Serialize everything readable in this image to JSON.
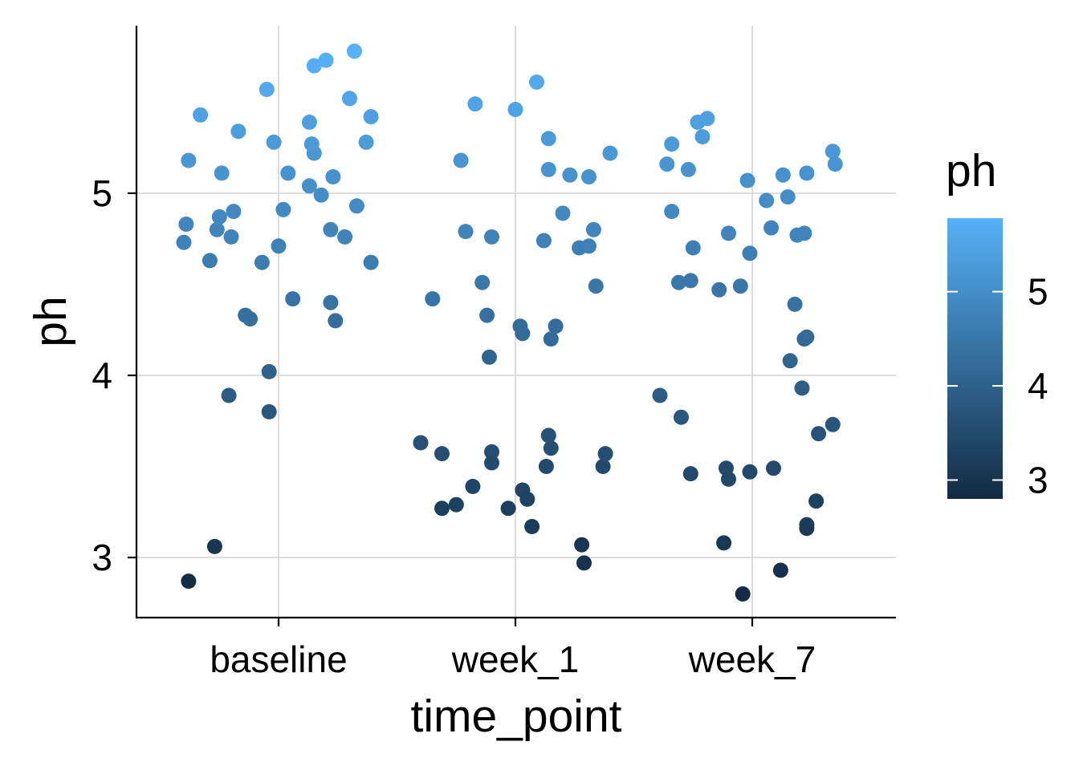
{
  "chart_data": {
    "type": "scatter",
    "title": "",
    "xlabel": "time_point",
    "ylabel": "ph",
    "categories": [
      "baseline",
      "week_1",
      "week_7"
    ],
    "ylim": [
      2.67,
      5.92
    ],
    "yticks": [
      3,
      4,
      5
    ],
    "grid": true,
    "jitter": true,
    "color_scale": {
      "variable": "ph",
      "low_color": "#132B43",
      "high_color": "#56B1F7",
      "range": [
        2.8,
        5.78
      ],
      "ticks": [
        3,
        4,
        5
      ]
    },
    "legend": {
      "title": "ph",
      "position": "right"
    },
    "points": [
      {
        "x": "baseline",
        "offset": -0.38,
        "y": 2.87
      },
      {
        "x": "baseline",
        "offset": -0.27,
        "y": 3.06
      },
      {
        "x": "baseline",
        "offset": -0.21,
        "y": 3.89
      },
      {
        "x": "baseline",
        "offset": -0.04,
        "y": 3.8
      },
      {
        "x": "baseline",
        "offset": -0.04,
        "y": 4.02
      },
      {
        "x": "baseline",
        "offset": -0.14,
        "y": 4.33
      },
      {
        "x": "baseline",
        "offset": -0.12,
        "y": 4.31
      },
      {
        "x": "baseline",
        "offset": 0.06,
        "y": 4.42
      },
      {
        "x": "baseline",
        "offset": 0.22,
        "y": 4.4
      },
      {
        "x": "baseline",
        "offset": 0.24,
        "y": 4.3
      },
      {
        "x": "baseline",
        "offset": -0.4,
        "y": 4.73
      },
      {
        "x": "baseline",
        "offset": -0.39,
        "y": 4.83
      },
      {
        "x": "baseline",
        "offset": -0.29,
        "y": 4.63
      },
      {
        "x": "baseline",
        "offset": -0.26,
        "y": 4.8
      },
      {
        "x": "baseline",
        "offset": -0.25,
        "y": 4.87
      },
      {
        "x": "baseline",
        "offset": -0.2,
        "y": 4.76
      },
      {
        "x": "baseline",
        "offset": -0.19,
        "y": 4.9
      },
      {
        "x": "baseline",
        "offset": -0.07,
        "y": 4.62
      },
      {
        "x": "baseline",
        "offset": 0.0,
        "y": 4.71
      },
      {
        "x": "baseline",
        "offset": 0.02,
        "y": 4.91
      },
      {
        "x": "baseline",
        "offset": 0.22,
        "y": 4.8
      },
      {
        "x": "baseline",
        "offset": 0.28,
        "y": 4.76
      },
      {
        "x": "baseline",
        "offset": 0.33,
        "y": 4.93
      },
      {
        "x": "baseline",
        "offset": 0.39,
        "y": 4.62
      },
      {
        "x": "baseline",
        "offset": 0.18,
        "y": 4.99
      },
      {
        "x": "baseline",
        "offset": 0.13,
        "y": 5.04
      },
      {
        "x": "baseline",
        "offset": 0.23,
        "y": 5.09
      },
      {
        "x": "baseline",
        "offset": 0.04,
        "y": 5.11
      },
      {
        "x": "baseline",
        "offset": -0.24,
        "y": 5.11
      },
      {
        "x": "baseline",
        "offset": -0.38,
        "y": 5.18
      },
      {
        "x": "baseline",
        "offset": 0.15,
        "y": 5.22
      },
      {
        "x": "baseline",
        "offset": 0.14,
        "y": 5.27
      },
      {
        "x": "baseline",
        "offset": -0.02,
        "y": 5.28
      },
      {
        "x": "baseline",
        "offset": 0.37,
        "y": 5.28
      },
      {
        "x": "baseline",
        "offset": -0.17,
        "y": 5.34
      },
      {
        "x": "baseline",
        "offset": 0.13,
        "y": 5.39
      },
      {
        "x": "baseline",
        "offset": -0.33,
        "y": 5.43
      },
      {
        "x": "baseline",
        "offset": 0.39,
        "y": 5.42
      },
      {
        "x": "baseline",
        "offset": 0.3,
        "y": 5.52
      },
      {
        "x": "baseline",
        "offset": -0.05,
        "y": 5.57
      },
      {
        "x": "baseline",
        "offset": 0.15,
        "y": 5.7
      },
      {
        "x": "baseline",
        "offset": 0.2,
        "y": 5.73
      },
      {
        "x": "baseline",
        "offset": 0.32,
        "y": 5.78
      },
      {
        "x": "week_1",
        "offset": -0.4,
        "y": 3.63
      },
      {
        "x": "week_1",
        "offset": -0.31,
        "y": 3.57
      },
      {
        "x": "week_1",
        "offset": -0.1,
        "y": 3.58
      },
      {
        "x": "week_1",
        "offset": -0.1,
        "y": 3.52
      },
      {
        "x": "week_1",
        "offset": -0.18,
        "y": 3.39
      },
      {
        "x": "week_1",
        "offset": -0.25,
        "y": 3.29
      },
      {
        "x": "week_1",
        "offset": -0.31,
        "y": 3.27
      },
      {
        "x": "week_1",
        "offset": -0.03,
        "y": 3.27
      },
      {
        "x": "week_1",
        "offset": 0.03,
        "y": 3.37
      },
      {
        "x": "week_1",
        "offset": 0.05,
        "y": 3.32
      },
      {
        "x": "week_1",
        "offset": 0.07,
        "y": 3.17
      },
      {
        "x": "week_1",
        "offset": 0.13,
        "y": 3.5
      },
      {
        "x": "week_1",
        "offset": 0.15,
        "y": 3.6
      },
      {
        "x": "week_1",
        "offset": 0.14,
        "y": 3.67
      },
      {
        "x": "week_1",
        "offset": 0.28,
        "y": 3.07
      },
      {
        "x": "week_1",
        "offset": 0.29,
        "y": 2.97
      },
      {
        "x": "week_1",
        "offset": 0.37,
        "y": 3.5
      },
      {
        "x": "week_1",
        "offset": 0.38,
        "y": 3.57
      },
      {
        "x": "week_1",
        "offset": -0.35,
        "y": 4.42
      },
      {
        "x": "week_1",
        "offset": -0.12,
        "y": 4.33
      },
      {
        "x": "week_1",
        "offset": -0.11,
        "y": 4.1
      },
      {
        "x": "week_1",
        "offset": 0.02,
        "y": 4.27
      },
      {
        "x": "week_1",
        "offset": 0.03,
        "y": 4.23
      },
      {
        "x": "week_1",
        "offset": 0.15,
        "y": 4.2
      },
      {
        "x": "week_1",
        "offset": 0.17,
        "y": 4.27
      },
      {
        "x": "week_1",
        "offset": -0.14,
        "y": 4.51
      },
      {
        "x": "week_1",
        "offset": 0.34,
        "y": 4.49
      },
      {
        "x": "week_1",
        "offset": -0.21,
        "y": 4.79
      },
      {
        "x": "week_1",
        "offset": -0.1,
        "y": 4.76
      },
      {
        "x": "week_1",
        "offset": 0.12,
        "y": 4.74
      },
      {
        "x": "week_1",
        "offset": 0.27,
        "y": 4.7
      },
      {
        "x": "week_1",
        "offset": 0.31,
        "y": 4.71
      },
      {
        "x": "week_1",
        "offset": 0.33,
        "y": 4.8
      },
      {
        "x": "week_1",
        "offset": 0.2,
        "y": 4.89
      },
      {
        "x": "week_1",
        "offset": -0.23,
        "y": 5.18
      },
      {
        "x": "week_1",
        "offset": 0.14,
        "y": 5.13
      },
      {
        "x": "week_1",
        "offset": 0.23,
        "y": 5.1
      },
      {
        "x": "week_1",
        "offset": 0.31,
        "y": 5.09
      },
      {
        "x": "week_1",
        "offset": 0.14,
        "y": 5.3
      },
      {
        "x": "week_1",
        "offset": 0.4,
        "y": 5.22
      },
      {
        "x": "week_1",
        "offset": -0.17,
        "y": 5.49
      },
      {
        "x": "week_1",
        "offset": 0.0,
        "y": 5.46
      },
      {
        "x": "week_1",
        "offset": 0.09,
        "y": 5.61
      },
      {
        "x": "week_7",
        "offset": -0.39,
        "y": 3.89
      },
      {
        "x": "week_7",
        "offset": -0.3,
        "y": 3.77
      },
      {
        "x": "week_7",
        "offset": -0.26,
        "y": 3.46
      },
      {
        "x": "week_7",
        "offset": -0.11,
        "y": 3.49
      },
      {
        "x": "week_7",
        "offset": -0.1,
        "y": 3.43
      },
      {
        "x": "week_7",
        "offset": -0.01,
        "y": 3.47
      },
      {
        "x": "week_7",
        "offset": 0.09,
        "y": 3.49
      },
      {
        "x": "week_7",
        "offset": -0.12,
        "y": 3.08
      },
      {
        "x": "week_7",
        "offset": -0.04,
        "y": 2.8
      },
      {
        "x": "week_7",
        "offset": 0.12,
        "y": 2.93
      },
      {
        "x": "week_7",
        "offset": 0.23,
        "y": 3.18
      },
      {
        "x": "week_7",
        "offset": 0.23,
        "y": 3.16
      },
      {
        "x": "week_7",
        "offset": 0.27,
        "y": 3.31
      },
      {
        "x": "week_7",
        "offset": 0.28,
        "y": 3.68
      },
      {
        "x": "week_7",
        "offset": 0.34,
        "y": 3.73
      },
      {
        "x": "week_7",
        "offset": 0.21,
        "y": 3.93
      },
      {
        "x": "week_7",
        "offset": 0.16,
        "y": 4.08
      },
      {
        "x": "week_7",
        "offset": 0.22,
        "y": 4.2
      },
      {
        "x": "week_7",
        "offset": 0.23,
        "y": 4.21
      },
      {
        "x": "week_7",
        "offset": 0.18,
        "y": 4.39
      },
      {
        "x": "week_7",
        "offset": -0.31,
        "y": 4.51
      },
      {
        "x": "week_7",
        "offset": -0.26,
        "y": 4.52
      },
      {
        "x": "week_7",
        "offset": -0.14,
        "y": 4.47
      },
      {
        "x": "week_7",
        "offset": -0.05,
        "y": 4.49
      },
      {
        "x": "week_7",
        "offset": -0.25,
        "y": 4.7
      },
      {
        "x": "week_7",
        "offset": -0.1,
        "y": 4.78
      },
      {
        "x": "week_7",
        "offset": -0.01,
        "y": 4.67
      },
      {
        "x": "week_7",
        "offset": 0.08,
        "y": 4.81
      },
      {
        "x": "week_7",
        "offset": 0.19,
        "y": 4.77
      },
      {
        "x": "week_7",
        "offset": 0.22,
        "y": 4.78
      },
      {
        "x": "week_7",
        "offset": -0.34,
        "y": 4.9
      },
      {
        "x": "week_7",
        "offset": 0.06,
        "y": 4.96
      },
      {
        "x": "week_7",
        "offset": 0.15,
        "y": 4.98
      },
      {
        "x": "week_7",
        "offset": -0.36,
        "y": 5.16
      },
      {
        "x": "week_7",
        "offset": -0.27,
        "y": 5.13
      },
      {
        "x": "week_7",
        "offset": -0.02,
        "y": 5.07
      },
      {
        "x": "week_7",
        "offset": 0.13,
        "y": 5.1
      },
      {
        "x": "week_7",
        "offset": 0.23,
        "y": 5.11
      },
      {
        "x": "week_7",
        "offset": 0.34,
        "y": 5.23
      },
      {
        "x": "week_7",
        "offset": 0.35,
        "y": 5.16
      },
      {
        "x": "week_7",
        "offset": -0.34,
        "y": 5.27
      },
      {
        "x": "week_7",
        "offset": -0.21,
        "y": 5.31
      },
      {
        "x": "week_7",
        "offset": -0.23,
        "y": 5.39
      },
      {
        "x": "week_7",
        "offset": -0.19,
        "y": 5.41
      }
    ]
  }
}
